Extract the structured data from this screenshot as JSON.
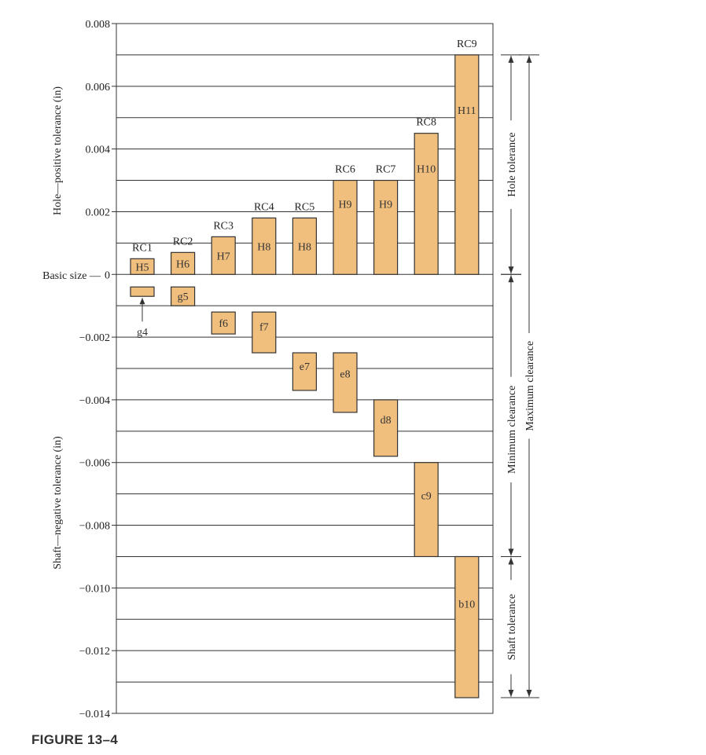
{
  "chart_data": {
    "type": "bar",
    "title": "",
    "ylabel_top": "Hole—positive tolerance (in)",
    "ylabel_bottom": "Shaft—negative tolerance (in)",
    "ylim": [
      -0.014,
      0.008
    ],
    "yticks": [
      {
        "value": 0.008,
        "label": "0.008"
      },
      {
        "value": 0.006,
        "label": "0.006"
      },
      {
        "value": 0.004,
        "label": "0.004"
      },
      {
        "value": 0.002,
        "label": "0.002"
      },
      {
        "value": 0,
        "label": "0"
      },
      {
        "value": -0.002,
        "label": "−0.002"
      },
      {
        "value": -0.004,
        "label": "−0.004"
      },
      {
        "value": -0.006,
        "label": "−0.006"
      },
      {
        "value": -0.008,
        "label": "−0.008"
      },
      {
        "value": -0.01,
        "label": "−0.010"
      },
      {
        "value": -0.012,
        "label": "−0.012"
      },
      {
        "value": -0.014,
        "label": "−0.014"
      }
    ],
    "basic_size_label": "Basic size —",
    "gridlines": [
      0.007,
      0.006,
      0.005,
      0.004,
      0.003,
      0.002,
      0.001,
      0,
      -0.001,
      -0.002,
      -0.003,
      -0.004,
      -0.005,
      -0.006,
      -0.007,
      -0.008,
      -0.009,
      -0.01,
      -0.011,
      -0.012,
      -0.013
    ],
    "fits": [
      {
        "name": "RC1",
        "hole": {
          "grade": "H5",
          "min": 0,
          "max": 0.0005
        },
        "shaft": {
          "grade": "g4",
          "upper": -0.0004,
          "lower": -0.0007
        }
      },
      {
        "name": "RC2",
        "hole": {
          "grade": "H6",
          "min": 0,
          "max": 0.0007
        },
        "shaft": {
          "grade": "g5",
          "upper": -0.0004,
          "lower": -0.001
        }
      },
      {
        "name": "RC3",
        "hole": {
          "grade": "H7",
          "min": 0,
          "max": 0.0012
        },
        "shaft": {
          "grade": "f6",
          "upper": -0.0012,
          "lower": -0.0019
        }
      },
      {
        "name": "RC4",
        "hole": {
          "grade": "H8",
          "min": 0,
          "max": 0.0018
        },
        "shaft": {
          "grade": "f7",
          "upper": -0.0012,
          "lower": -0.0025
        }
      },
      {
        "name": "RC5",
        "hole": {
          "grade": "H8",
          "min": 0,
          "max": 0.0018
        },
        "shaft": {
          "grade": "e7",
          "upper": -0.0025,
          "lower": -0.0037
        }
      },
      {
        "name": "RC6",
        "hole": {
          "grade": "H9",
          "min": 0,
          "max": 0.003
        },
        "shaft": {
          "grade": "e8",
          "upper": -0.0025,
          "lower": -0.0044
        }
      },
      {
        "name": "RC7",
        "hole": {
          "grade": "H9",
          "min": 0,
          "max": 0.003
        },
        "shaft": {
          "grade": "d8",
          "upper": -0.004,
          "lower": -0.0058
        }
      },
      {
        "name": "RC8",
        "hole": {
          "grade": "H10",
          "min": 0,
          "max": 0.0045
        },
        "shaft": {
          "grade": "c9",
          "upper": -0.006,
          "lower": -0.009
        }
      },
      {
        "name": "RC9",
        "hole": {
          "grade": "H11",
          "min": 0,
          "max": 0.007
        },
        "shaft": {
          "grade": "b10",
          "upper": -0.009,
          "lower": -0.0135
        }
      }
    ],
    "annotations": {
      "hole_tolerance": {
        "label": "Hole tolerance",
        "from": 0,
        "to": 0.007
      },
      "minimum_clearance": {
        "label": "Minimum clearance",
        "from": -0.009,
        "to": 0
      },
      "shaft_tolerance": {
        "label": "Shaft tolerance",
        "from": -0.0135,
        "to": -0.009
      },
      "maximum_clearance": {
        "label": "Maximum clearance",
        "from": -0.0135,
        "to": 0.007
      }
    },
    "colors": {
      "bar_fill": "#f0bf7e",
      "bar_stroke": "#333333",
      "grid": "#333333"
    }
  },
  "figure": {
    "caption": "FIGURE 13–4"
  }
}
